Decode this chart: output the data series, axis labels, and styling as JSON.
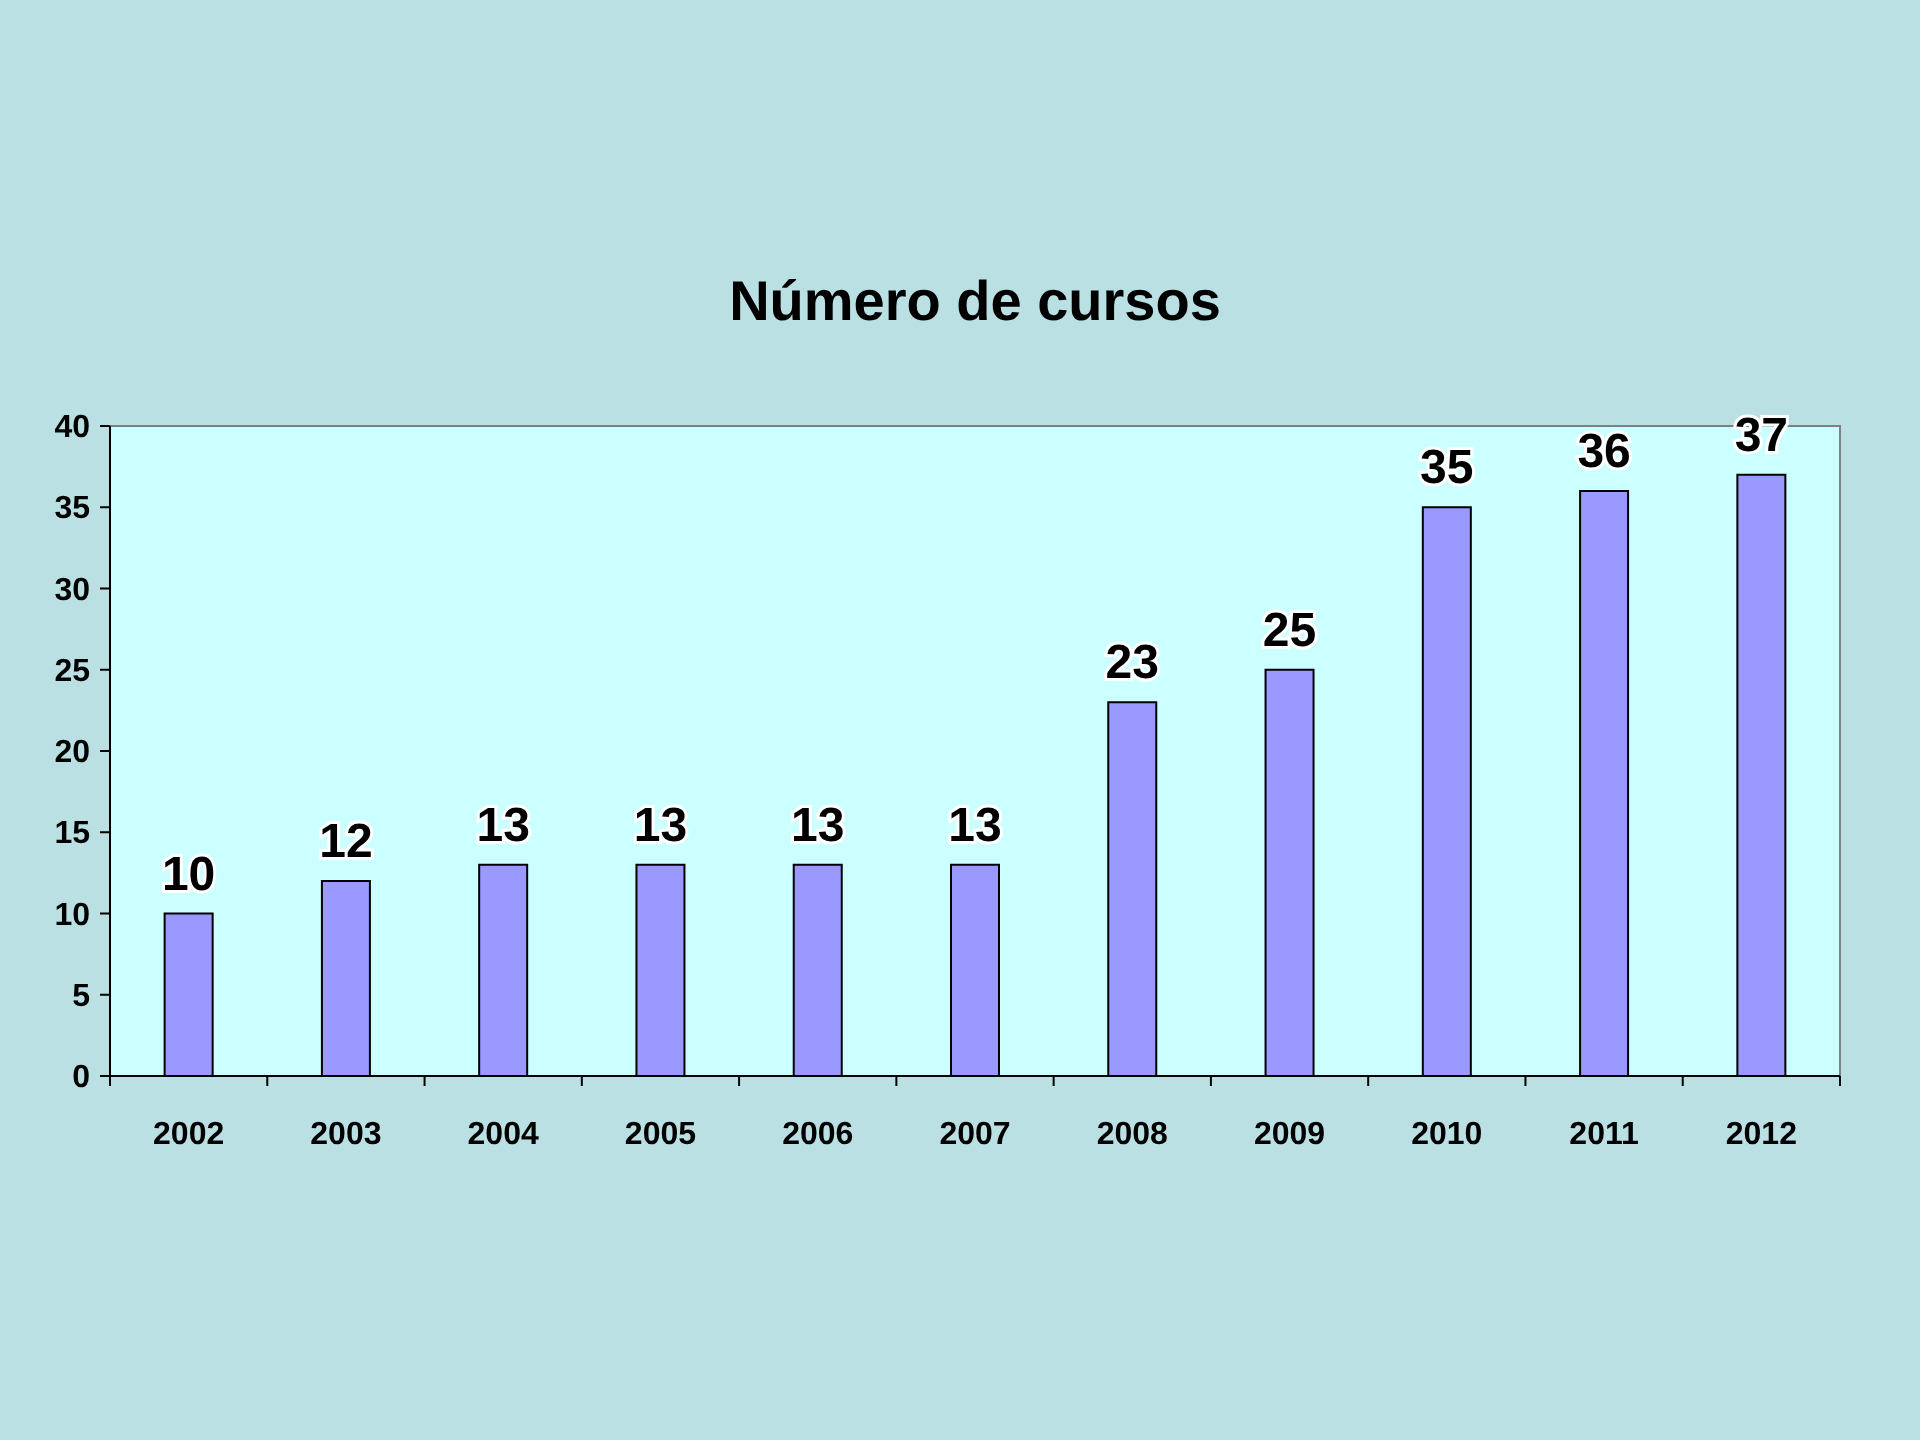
{
  "chart_data": {
    "type": "bar",
    "title": "Número de cursos",
    "categories": [
      "2002",
      "2003",
      "2004",
      "2005",
      "2006",
      "2007",
      "2008",
      "2009",
      "2010",
      "2011",
      "2012"
    ],
    "values": [
      10,
      12,
      13,
      13,
      13,
      13,
      23,
      25,
      35,
      36,
      37
    ],
    "color": "#9999ff",
    "ylim": [
      0,
      40
    ],
    "yticks": [
      0,
      5,
      10,
      15,
      20,
      25,
      30,
      35,
      40
    ],
    "grid": false,
    "data_labels": true
  }
}
